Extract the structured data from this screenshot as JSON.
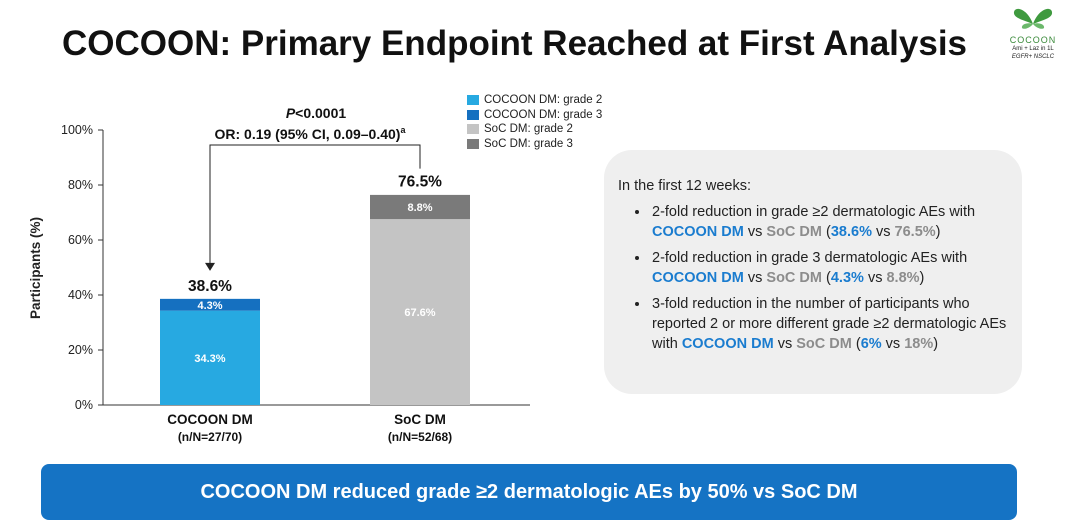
{
  "title": "COCOON: Primary Endpoint Reached at First Analysis",
  "logo": {
    "name": "COCOON",
    "line1": "Ami + Laz in 1L",
    "line2": "EGFR+ NSCLC"
  },
  "colors": {
    "cocoon_g2": "#27a9e1",
    "cocoon_g3": "#1570c0",
    "soc_g2": "#c4c4c4",
    "soc_g3": "#7a7a7a",
    "banner": "#1573c4"
  },
  "chart_data": {
    "type": "bar",
    "stacked": true,
    "categories": [
      "COCOON DM",
      "SoC DM"
    ],
    "category_sublabels": [
      "(n/N=27/70)",
      "(n/N=52/68)"
    ],
    "ylabel": "Participants (%)",
    "ylim": [
      0,
      100
    ],
    "yticks": [
      "0%",
      "20%",
      "40%",
      "60%",
      "80%",
      "100%"
    ],
    "totals": [
      38.6,
      76.5
    ],
    "total_labels": [
      "38.6%",
      "76.5%"
    ],
    "series": [
      {
        "name": "COCOON DM: grade 2",
        "values": [
          34.3,
          null
        ],
        "labels": [
          "34.3%",
          ""
        ]
      },
      {
        "name": "COCOON DM: grade 3",
        "values": [
          4.3,
          null
        ],
        "labels": [
          "4.3%",
          ""
        ]
      },
      {
        "name": "SoC DM: grade 2",
        "values": [
          null,
          67.6
        ],
        "labels": [
          "",
          "67.6%"
        ]
      },
      {
        "name": "SoC DM: grade 3",
        "values": [
          null,
          8.8
        ],
        "labels": [
          "",
          "8.8%"
        ]
      }
    ],
    "annotation": {
      "p_italic": "P",
      "p_rest": "<0.0001",
      "or_text": "OR: 0.19 (95% CI, 0.09–0.40)",
      "superscript": "a"
    },
    "legend_position": "top-right"
  },
  "info": {
    "lead": "In the first 12 weeks:",
    "b1": {
      "t1": "2-fold reduction in grade ≥2 dermatologic AEs with ",
      "a": "COCOON DM",
      "t2": " vs ",
      "b": "SoC DM",
      "t3": " (",
      "av": "38.6%",
      "t4": " vs ",
      "bv": "76.5%",
      "t5": ")"
    },
    "b2": {
      "t1": "2-fold reduction in grade 3 dermatologic AEs with ",
      "a": "COCOON DM",
      "t2": " vs ",
      "b": "SoC DM",
      "t3": " (",
      "av": "4.3%",
      "t4": " vs ",
      "bv": "8.8%",
      "t5": ")"
    },
    "b3": {
      "t1": "3-fold reduction in the number of participants who reported 2 or more different grade ≥2 dermatologic AEs with ",
      "a": "COCOON DM",
      "t2": " vs ",
      "b": "SoC DM",
      "t3": " (",
      "av": "6%",
      "t4": " vs ",
      "bv": "18%",
      "t5": ")"
    }
  },
  "banner": "COCOON DM reduced grade ≥2 dermatologic AEs by 50% vs SoC DM"
}
